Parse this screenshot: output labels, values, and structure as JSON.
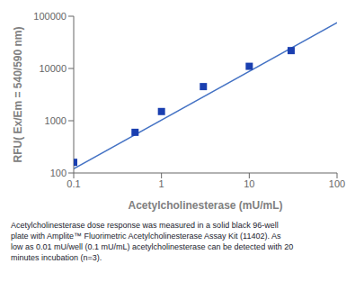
{
  "chart_data": {
    "type": "scatter",
    "xlabel": "Acetylcholinesterase (mU/mL)",
    "ylabel": "RFU( Ex/Em = 540/590 nm)",
    "caption": "Acetylcholinesterase dose response was measured in a solid black 96-well\nplate with Amplite™ Fluorimetric Acetylcholinesterase Assay Kit (11402). As\nlow as 0.01 mU/well (0.1 mU/mL) acetylcholinesterase can be detected with 20\nminutes incubation (n=3).",
    "log": true,
    "grid": false,
    "xlim": [
      0.1,
      100
    ],
    "ylim": [
      100,
      100000
    ],
    "xticks": [
      0.1,
      1,
      10,
      100
    ],
    "yticks": [
      100,
      1000,
      10000,
      100000
    ],
    "series": [
      {
        "type": "line",
        "x": [
          0.1,
          100
        ],
        "values": [
          120,
          75000
        ],
        "color": "#4472c4"
      },
      {
        "type": "scatter",
        "x": [
          0.1,
          0.5,
          1.0,
          3.0,
          10.0,
          30.0
        ],
        "values": [
          160,
          600,
          1500,
          4500,
          11000,
          22000
        ],
        "color": "#1a3fb0",
        "marker": "square"
      }
    ]
  }
}
